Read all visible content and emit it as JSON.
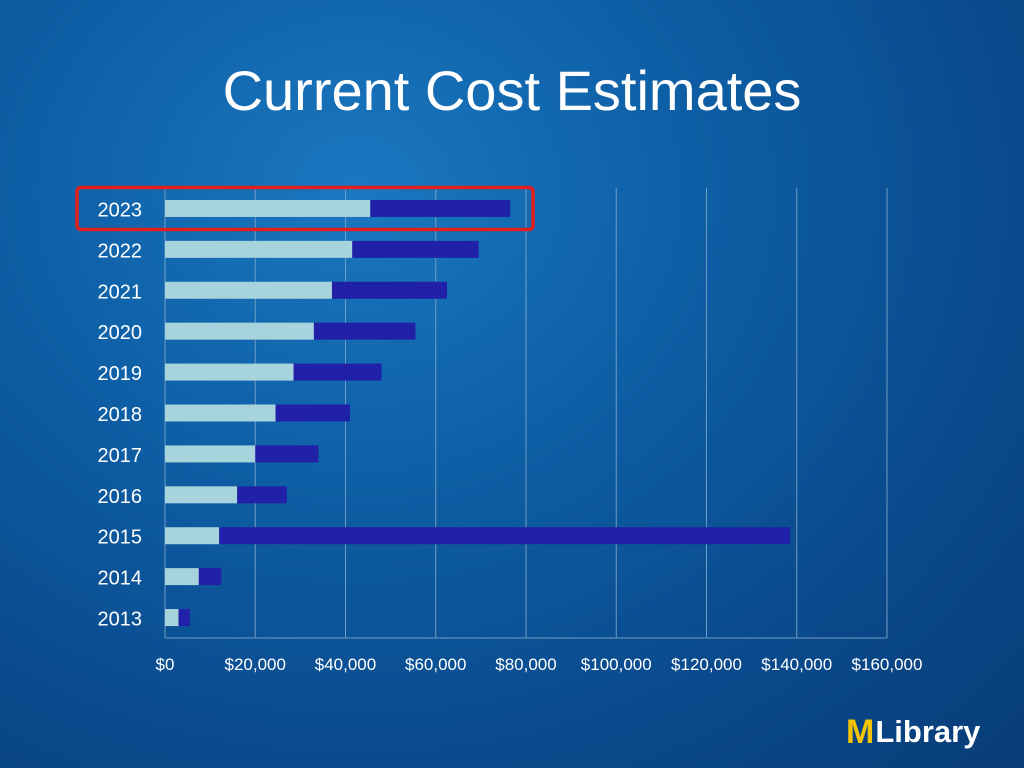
{
  "slide": {
    "title": "Current Cost Estimates"
  },
  "logo": {
    "mark": "M",
    "text": "Library"
  },
  "colors": {
    "base_bar": "#a7d3dc",
    "increment_bar": "#2020a8",
    "highlight_box": "#e0201e",
    "gridline": "#6f9cc4"
  },
  "chart_data": {
    "type": "bar",
    "orientation": "horizontal",
    "stacked": true,
    "categories": [
      "2023",
      "2022",
      "2021",
      "2020",
      "2019",
      "2018",
      "2017",
      "2016",
      "2015",
      "2014",
      "2013"
    ],
    "series": [
      {
        "values": [
          45500,
          41500,
          37000,
          33000,
          28500,
          24500,
          20000,
          16000,
          12000,
          7500,
          3000
        ]
      },
      {
        "values": [
          31000,
          28000,
          25500,
          22500,
          19500,
          16500,
          14000,
          11000,
          126500,
          5000,
          2500
        ]
      }
    ],
    "xlim": [
      0,
      160000
    ],
    "xticks": [
      "$0",
      "$20,000",
      "$40,000",
      "$60,000",
      "$80,000",
      "$100,000",
      "$120,000",
      "$140,000",
      "$160,000"
    ],
    "grid": true,
    "legend": "none",
    "highlighted_category": "2023"
  }
}
